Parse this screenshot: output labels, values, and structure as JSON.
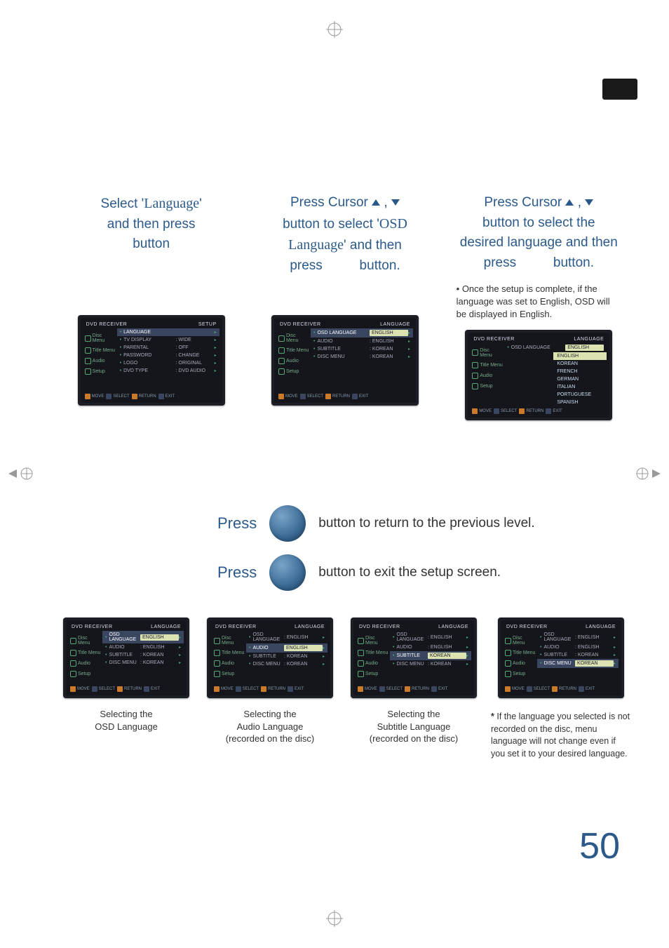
{
  "page_number": "50",
  "blue": "#2b5a8a",
  "steps": [
    {
      "title_html": "Select '<span class='strong'>Language</span>'<br>and then press<br>button",
      "subnote": ""
    },
    {
      "title_html": "Press Cursor <span class='tri-up'></span> , <span class='tri-down'></span><br>button to select '<span class='strong'>OSD<br>Language</span>' and then<br>press&nbsp;&nbsp;&nbsp;&nbsp;&nbsp;&nbsp;&nbsp;&nbsp;&nbsp;&nbsp;button.",
      "subnote": ""
    },
    {
      "title_html": "Press Cursor <span class='tri-up'></span> , <span class='tri-down'></span><br>button to select the<br>desired language and then<br>press&nbsp;&nbsp;&nbsp;&nbsp;&nbsp;&nbsp;&nbsp;&nbsp;&nbsp;&nbsp;button.",
      "subnote": "• Once the setup is complete, if the language was set to English, OSD will be displayed in English."
    }
  ],
  "osd_side_items": [
    "Disc Menu",
    "Title Menu",
    "Audio",
    "Setup"
  ],
  "osd_footer": [
    "MOVE",
    "SELECT",
    "RETURN",
    "EXIT"
  ],
  "osd1": {
    "header_left": "DVD RECEIVER",
    "header_right": "SETUP",
    "rows": [
      {
        "label": "LANGUAGE",
        "value": "",
        "hl": true,
        "arrow": true
      },
      {
        "label": "TV DISPLAY",
        "value": "WIDE",
        "arrow": true
      },
      {
        "label": "PARENTAL",
        "value": "OFF",
        "arrow": true
      },
      {
        "label": "PASSWORD",
        "value": "CHANGE",
        "arrow": true
      },
      {
        "label": "LOGO",
        "value": "ORIGINAL",
        "arrow": true
      },
      {
        "label": "DVD TYPE",
        "value": "DVD AUDIO",
        "arrow": true
      }
    ]
  },
  "osd2": {
    "header_left": "DVD RECEIVER",
    "header_right": "LANGUAGE",
    "rows": [
      {
        "label": "OSD LANGUAGE",
        "value": "ENGLISH",
        "hl": true,
        "arrow": true
      },
      {
        "label": "AUDIO",
        "value": "ENGLISH",
        "arrow": true
      },
      {
        "label": "SUBTITLE",
        "value": "KOREAN",
        "arrow": true
      },
      {
        "label": "DISC MENU",
        "value": "KOREAN",
        "arrow": true
      }
    ]
  },
  "osd3": {
    "header_left": "DVD RECEIVER",
    "header_right": "LANGUAGE",
    "row_label": "OSD LANGUAGE",
    "row_value": "ENGLISH",
    "dropdown": [
      "ENGLISH",
      "KOREAN",
      "FRENCH",
      "GERMAN",
      "ITALIAN",
      "PORTUGUESE",
      "SPANISH"
    ]
  },
  "mid": [
    {
      "press": "Press",
      "rest": "button to return to the previous level."
    },
    {
      "press": "Press",
      "rest": "button to exit the setup screen."
    }
  ],
  "thumbs": [
    {
      "caption": "Selecting the\nOSD Language",
      "rows": [
        {
          "label": "OSD LANGUAGE",
          "value": "ENGLISH",
          "hl": true
        },
        {
          "label": "AUDIO",
          "value": "ENGLISH"
        },
        {
          "label": "SUBTITLE",
          "value": "KOREAN"
        },
        {
          "label": "DISC MENU",
          "value": "KOREAN"
        }
      ]
    },
    {
      "caption": "Selecting the\nAudio Language\n(recorded on the disc)",
      "rows": [
        {
          "label": "OSD LANGUAGE",
          "value": "ENGLISH"
        },
        {
          "label": "AUDIO",
          "value": "ENGLISH",
          "hl": true
        },
        {
          "label": "SUBTITLE",
          "value": "KOREAN"
        },
        {
          "label": "DISC MENU",
          "value": "KOREAN"
        }
      ]
    },
    {
      "caption": "Selecting the\nSubtitle Language\n(recorded on the disc)",
      "rows": [
        {
          "label": "OSD LANGUAGE",
          "value": "ENGLISH"
        },
        {
          "label": "AUDIO",
          "value": "ENGLISH"
        },
        {
          "label": "SUBTITLE",
          "value": "KOREAN",
          "hl": true
        },
        {
          "label": "DISC MENU",
          "value": "KOREAN"
        }
      ]
    },
    {
      "caption": "",
      "rows": [
        {
          "label": "OSD LANGUAGE",
          "value": "ENGLISH"
        },
        {
          "label": "AUDIO",
          "value": "ENGLISH"
        },
        {
          "label": "SUBTITLE",
          "value": "KOREAN"
        },
        {
          "label": "DISC MENU",
          "value": "KOREAN",
          "hl": true
        }
      ]
    }
  ],
  "footnote": "If the language you selected is not recorded on the disc, menu language will not change even if you set it to your desired language."
}
